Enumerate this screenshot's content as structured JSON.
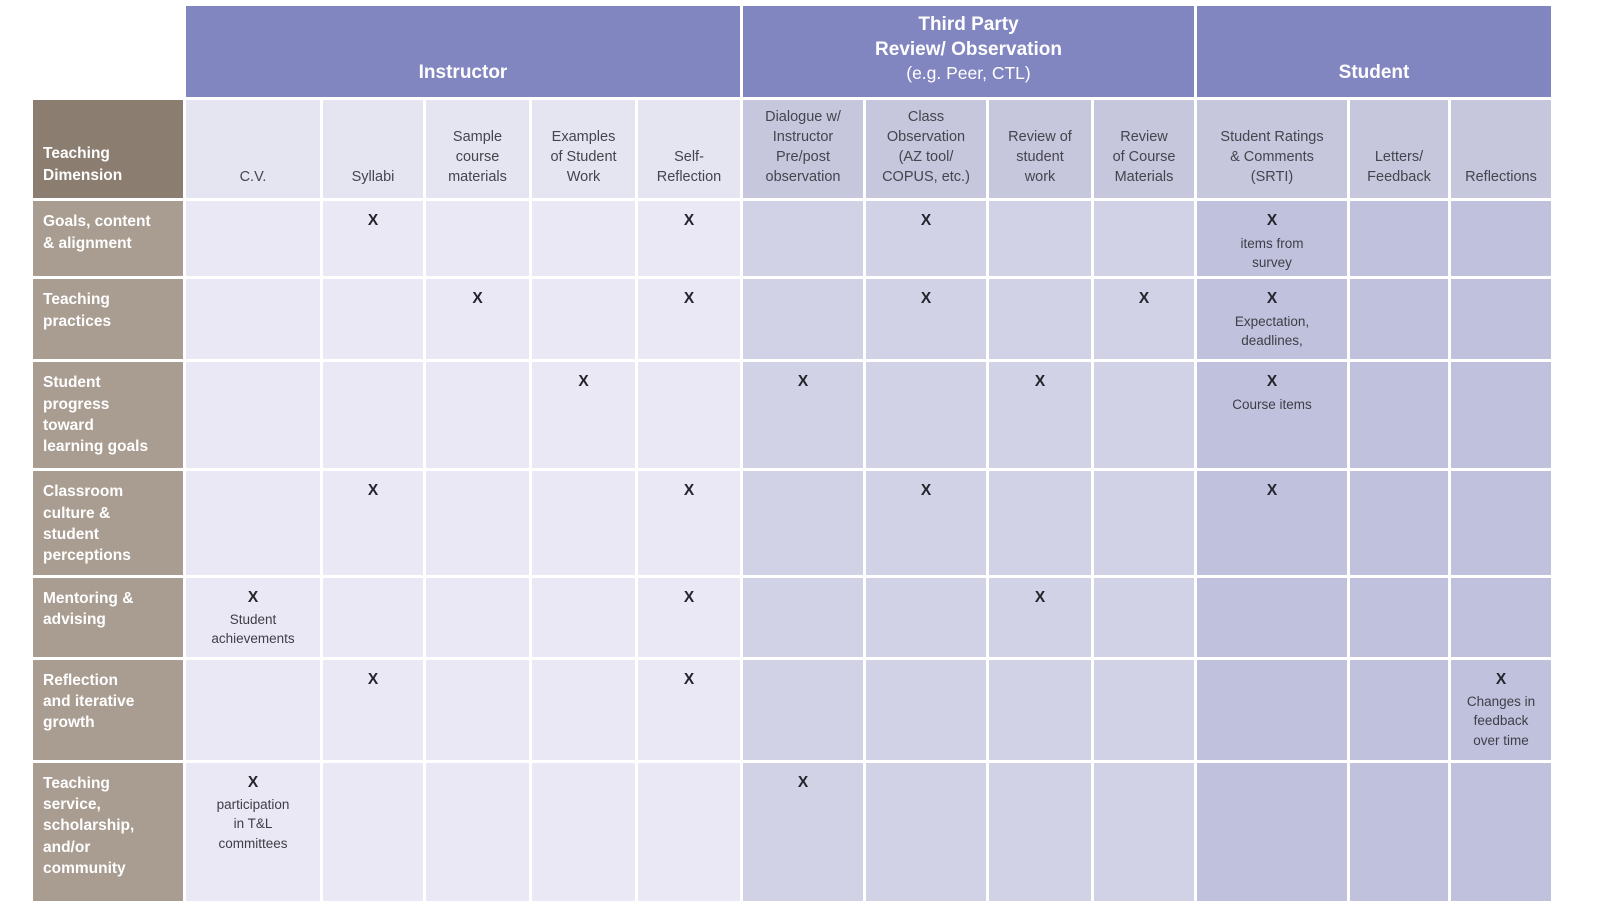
{
  "colors": {
    "group_header": "#8185c0",
    "group_header_text": "#ffffff",
    "dimension_header": "#8b7d70",
    "row_label": "#a99c90",
    "row_label_text": "#ffffff",
    "instructor_header_cell": "#e5e4f1",
    "third_party_header_cell": "#c6c6dd",
    "student_header_cell": "#c6c6dd",
    "instructor_body_cell": "#e9e8f4",
    "third_party_body_cell": "#d2d2e6",
    "student_body_cell": "#c0c1dc",
    "header_text": "#45454e",
    "mark_text": "#24242c",
    "note_text": "#3e3e48"
  },
  "table": {
    "corner_header": "Teaching\nDimension",
    "mark_symbol": "X",
    "groups": [
      {
        "id": "instructor",
        "span": 5,
        "bold_lines": [
          "Instructor"
        ],
        "normal_lines": []
      },
      {
        "id": "third-party",
        "span": 4,
        "bold_lines": [
          "Third Party",
          "Review/ Observation"
        ],
        "normal_lines": [
          "(e.g. Peer, CTL)"
        ]
      },
      {
        "id": "student",
        "span": 3,
        "bold_lines": [
          "Student"
        ],
        "normal_lines": []
      }
    ],
    "columns": [
      {
        "id": "cv",
        "group": "instructor",
        "label": "C.V."
      },
      {
        "id": "syllabi",
        "group": "instructor",
        "label": "Syllabi"
      },
      {
        "id": "sample-materials",
        "group": "instructor",
        "label": "Sample\ncourse\nmaterials"
      },
      {
        "id": "examples-student-work",
        "group": "instructor",
        "label": "Examples\nof Student\nWork"
      },
      {
        "id": "self-reflection",
        "group": "instructor",
        "label": "Self-\nReflection"
      },
      {
        "id": "dialogue-instructor",
        "group": "third-party",
        "label": "Dialogue w/\nInstructor\nPre/post\nobservation"
      },
      {
        "id": "class-observation",
        "group": "third-party",
        "label": "Class\nObservation\n(AZ tool/\nCOPUS, etc.)"
      },
      {
        "id": "review-student-work",
        "group": "third-party",
        "label": "Review of\nstudent\nwork"
      },
      {
        "id": "review-course-materials",
        "group": "third-party",
        "label": "Review\nof Course\nMaterials"
      },
      {
        "id": "srti",
        "group": "student",
        "label": "Student Ratings\n& Comments\n(SRTI)"
      },
      {
        "id": "letters-feedback",
        "group": "student",
        "label": "Letters/\nFeedback"
      },
      {
        "id": "reflections",
        "group": "student",
        "label": "Reflections"
      }
    ],
    "rows": [
      {
        "id": "goals-content-alignment",
        "label": "Goals, content\n& alignment",
        "cells": {
          "syllabi": {
            "mark": "X"
          },
          "self-reflection": {
            "mark": "X"
          },
          "class-observation": {
            "mark": "X"
          },
          "srti": {
            "mark": "X",
            "note": "items from\nsurvey"
          }
        }
      },
      {
        "id": "teaching-practices",
        "label": "Teaching\npractices",
        "cells": {
          "sample-materials": {
            "mark": "X"
          },
          "self-reflection": {
            "mark": "X"
          },
          "class-observation": {
            "mark": "X"
          },
          "review-course-materials": {
            "mark": "X"
          },
          "srti": {
            "mark": "X",
            "note": "Expectation,\ndeadlines,"
          }
        }
      },
      {
        "id": "student-progress",
        "label": "Student\nprogress\ntoward\nlearning goals",
        "cells": {
          "examples-student-work": {
            "mark": "X"
          },
          "dialogue-instructor": {
            "mark": "X"
          },
          "review-student-work": {
            "mark": "X"
          },
          "srti": {
            "mark": "X",
            "note": "Course items"
          }
        }
      },
      {
        "id": "classroom-culture",
        "label": "Classroom\nculture &\nstudent\nperceptions",
        "cells": {
          "syllabi": {
            "mark": "X"
          },
          "self-reflection": {
            "mark": "X"
          },
          "class-observation": {
            "mark": "X"
          },
          "srti": {
            "mark": "X"
          }
        }
      },
      {
        "id": "mentoring-advising",
        "label": "Mentoring &\nadvising",
        "cells": {
          "cv": {
            "mark": "X",
            "note": "Student\nachievements"
          },
          "self-reflection": {
            "mark": "X"
          },
          "review-student-work": {
            "mark": "X"
          }
        }
      },
      {
        "id": "reflection-growth",
        "label": "Reflection\nand iterative\ngrowth",
        "cells": {
          "syllabi": {
            "mark": "X"
          },
          "self-reflection": {
            "mark": "X"
          },
          "reflections": {
            "mark": "X",
            "note": "Changes in\nfeedback\nover time"
          }
        }
      },
      {
        "id": "teaching-service",
        "label": "Teaching\nservice,\nscholarship,\nand/or\ncommunity",
        "cells": {
          "cv": {
            "mark": "X",
            "note": "participation\nin T&L\ncommittees"
          },
          "dialogue-instructor": {
            "mark": "X"
          }
        }
      }
    ]
  }
}
